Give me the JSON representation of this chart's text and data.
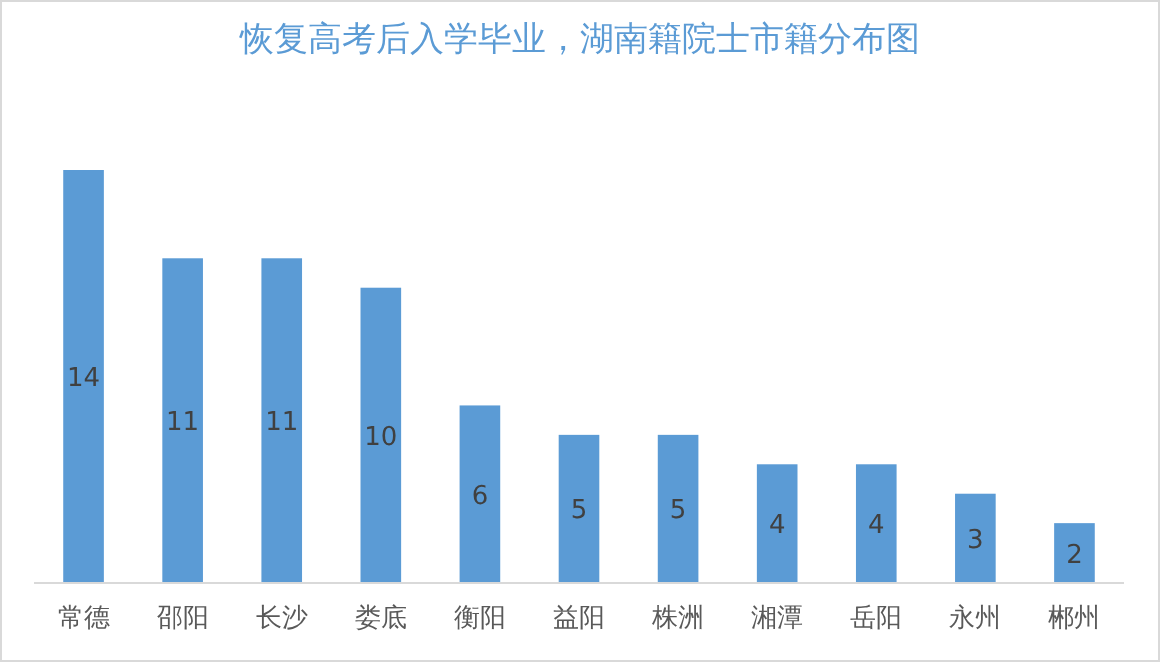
{
  "chart_data": {
    "type": "bar",
    "title": "恢复高考后入学毕业，湖南籍院士市籍分布图",
    "categories": [
      "常德",
      "邵阳",
      "长沙",
      "娄底",
      "衡阳",
      "益阳",
      "株洲",
      "湘潭",
      "岳阳",
      "永州",
      "郴州"
    ],
    "values": [
      14,
      11,
      11,
      10,
      6,
      5,
      5,
      4,
      4,
      3,
      2
    ],
    "color": "#5b9bd5",
    "data_labels": true
  }
}
